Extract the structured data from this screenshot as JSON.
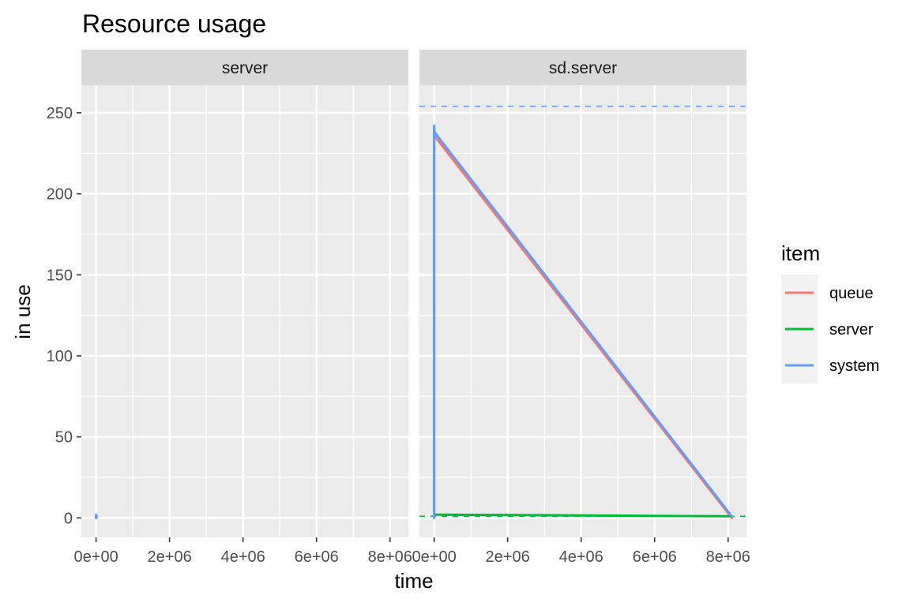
{
  "chart_data": {
    "type": "line",
    "title": "Resource usage",
    "xlabel": "time",
    "ylabel": "in use",
    "xlim": [
      -400000,
      8500000
    ],
    "ylim": [
      -12,
      267
    ],
    "x_ticks": [
      0,
      2000000,
      4000000,
      6000000,
      8000000
    ],
    "x_tick_labels": [
      "0e+00",
      "2e+06",
      "4e+06",
      "6e+06",
      "8e+06"
    ],
    "y_ticks": [
      0,
      50,
      100,
      150,
      200,
      250
    ],
    "y_tick_labels": [
      "0",
      "50",
      "100",
      "150",
      "200",
      "250"
    ],
    "grid": true,
    "legend": {
      "title": "item",
      "position": "right",
      "entries": [
        {
          "label": "queue",
          "color": "#F8766D"
        },
        {
          "label": "server",
          "color": "#00BA38"
        },
        {
          "label": "system",
          "color": "#619CFF"
        }
      ]
    },
    "facets": [
      {
        "label": "server",
        "series": [
          {
            "name": "queue",
            "color": "#F8766D",
            "dashed": false,
            "points": [
              [
                0,
                0
              ],
              [
                12000,
                0
              ]
            ]
          },
          {
            "name": "server",
            "color": "#00BA38",
            "dashed": false,
            "points": [
              [
                0,
                1
              ],
              [
                12000,
                1
              ]
            ]
          },
          {
            "name": "system",
            "color": "#619CFF",
            "dashed": false,
            "points": [
              [
                0,
                0
              ],
              [
                0,
                2
              ],
              [
                12000,
                1
              ]
            ]
          }
        ],
        "limit_lines": []
      },
      {
        "label": "sd.server",
        "series": [
          {
            "name": "queue",
            "color": "#F8766D",
            "dashed": false,
            "points": [
              [
                0,
                0
              ],
              [
                0,
                236
              ],
              [
                8100000,
                0
              ]
            ]
          },
          {
            "name": "server",
            "color": "#00BA38",
            "dashed": false,
            "points": [
              [
                0,
                2
              ],
              [
                8100000,
                1
              ]
            ]
          },
          {
            "name": "system",
            "color": "#619CFF",
            "dashed": false,
            "points": [
              [
                0,
                0
              ],
              [
                0,
                242
              ],
              [
                10000,
                238
              ],
              [
                8100000,
                1
              ]
            ]
          }
        ],
        "limit_lines": [
          {
            "name": "system",
            "color": "#619CFF",
            "dashed": true,
            "y": 254
          },
          {
            "name": "server",
            "color": "#00BA38",
            "dashed": true,
            "y": 1
          }
        ]
      }
    ]
  }
}
